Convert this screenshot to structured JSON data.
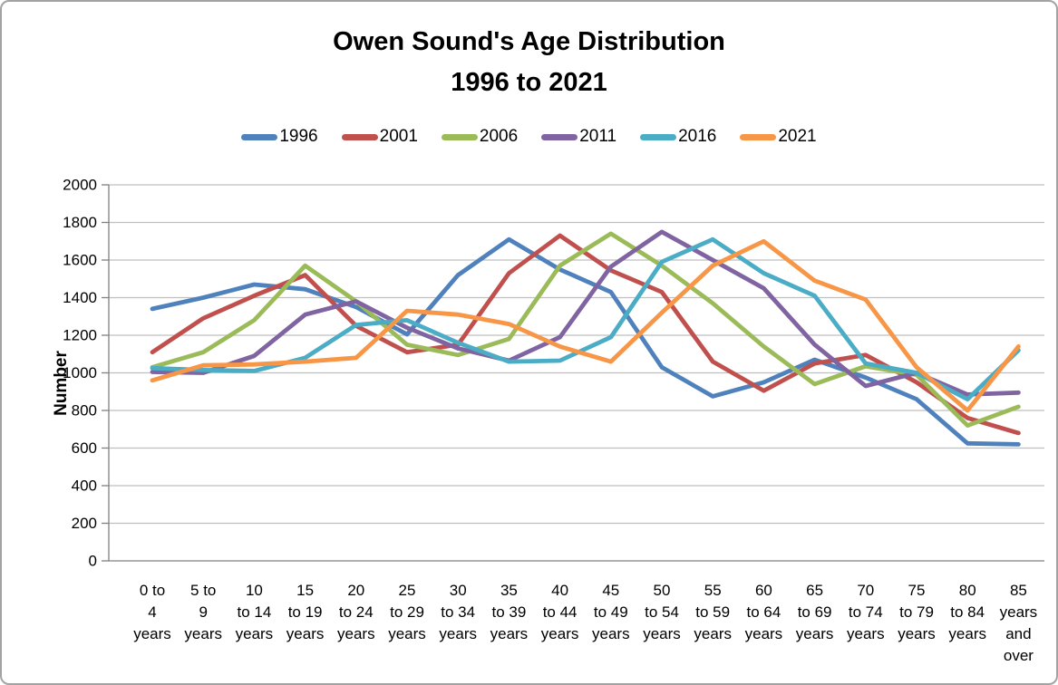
{
  "title": {
    "line1": "Owen Sound's Age Distribution",
    "line2": "1996 to 2021"
  },
  "chart_data": {
    "type": "line",
    "title": "Owen Sound's Age Distribution 1996 to 2021",
    "xlabel": "",
    "ylabel": "Number",
    "ylim": [
      0,
      2000
    ],
    "ytick_step": 200,
    "grid": true,
    "legend_position": "top",
    "gridline_color": "#bfbfbf",
    "axis_color": "#808080",
    "categories": [
      "0 to 4 years",
      "5 to 9 years",
      "10 to 14 years",
      "15 to 19 years",
      "20 to 24 years",
      "25 to 29 years",
      "30 to 34 years",
      "35 to 39 years",
      "40 to 44 years",
      "45 to 49 years",
      "50 to 54 years",
      "55 to 59 years",
      "60 to 64 years",
      "65 to 69 years",
      "70 to 74 years",
      "75 to 79 years",
      "80 to 84 years",
      "85 years and over"
    ],
    "category_label_lines": [
      [
        "0 to",
        "4",
        "years"
      ],
      [
        "5 to",
        "9",
        "years"
      ],
      [
        "10",
        "to 14",
        "years"
      ],
      [
        "15",
        "to 19",
        "years"
      ],
      [
        "20",
        "to 24",
        "years"
      ],
      [
        "25",
        "to 29",
        "years"
      ],
      [
        "30",
        "to 34",
        "years"
      ],
      [
        "35",
        "to 39",
        "years"
      ],
      [
        "40",
        "to 44",
        "years"
      ],
      [
        "45",
        "to 49",
        "years"
      ],
      [
        "50",
        "to 54",
        "years"
      ],
      [
        "55",
        "to 59",
        "years"
      ],
      [
        "60",
        "to 64",
        "years"
      ],
      [
        "65",
        "to 69",
        "years"
      ],
      [
        "70",
        "to 74",
        "years"
      ],
      [
        "75",
        "to 79",
        "years"
      ],
      [
        "80",
        "to 84",
        "years"
      ],
      [
        "85",
        "years",
        "and",
        "over"
      ]
    ],
    "series": [
      {
        "name": "1996",
        "color": "#4F81BD",
        "values": [
          1340,
          1400,
          1470,
          1445,
          1350,
          1205,
          1520,
          1710,
          1550,
          1430,
          1030,
          875,
          950,
          1070,
          975,
          860,
          625,
          620
        ]
      },
      {
        "name": "2001",
        "color": "#C0504D",
        "values": [
          1110,
          1290,
          1410,
          1520,
          1250,
          1110,
          1150,
          1530,
          1730,
          1545,
          1430,
          1060,
          905,
          1050,
          1095,
          950,
          760,
          680
        ]
      },
      {
        "name": "2006",
        "color": "#9BBB59",
        "values": [
          1030,
          1110,
          1280,
          1570,
          1380,
          1150,
          1095,
          1180,
          1570,
          1740,
          1570,
          1370,
          1140,
          940,
          1035,
          990,
          720,
          820
        ]
      },
      {
        "name": "2011",
        "color": "#8064A2",
        "values": [
          1005,
          1000,
          1090,
          1310,
          1380,
          1240,
          1130,
          1065,
          1190,
          1565,
          1750,
          1600,
          1450,
          1150,
          930,
          1000,
          885,
          895
        ]
      },
      {
        "name": "2016",
        "color": "#4BACC6",
        "values": [
          1025,
          1015,
          1010,
          1080,
          1255,
          1280,
          1160,
          1060,
          1065,
          1190,
          1590,
          1710,
          1530,
          1410,
          1050,
          1000,
          860,
          1120
        ]
      },
      {
        "name": "2021",
        "color": "#F79646",
        "values": [
          960,
          1040,
          1045,
          1060,
          1080,
          1330,
          1310,
          1260,
          1140,
          1060,
          1320,
          1570,
          1700,
          1490,
          1390,
          1030,
          800,
          1140
        ]
      }
    ]
  }
}
